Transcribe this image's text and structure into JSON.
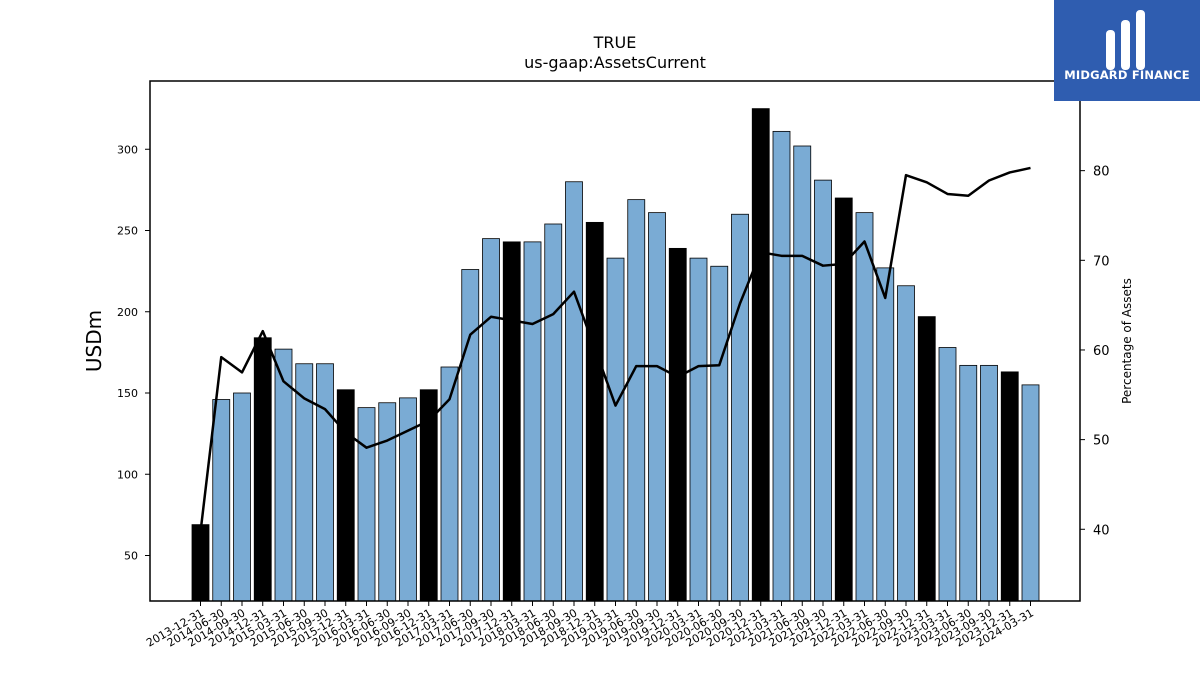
{
  "chart_data": {
    "type": "bar",
    "title": "TRUE",
    "subtitle": "us-gaap:AssetsCurrent",
    "ylabel": "USDm",
    "y2label": "Percentage of Assets",
    "ylim": [
      22,
      342
    ],
    "y2lim": [
      32,
      90
    ],
    "yticks": [
      50,
      100,
      150,
      200,
      250,
      300
    ],
    "y2ticks": [
      40,
      50,
      60,
      70,
      80
    ],
    "categories": [
      "2013-12-31",
      "2014-06-30",
      "2014-09-30",
      "2014-12-31",
      "2015-03-31",
      "2015-06-30",
      "2015-09-30",
      "2015-12-31",
      "2016-03-31",
      "2016-06-30",
      "2016-09-30",
      "2016-12-31",
      "2017-03-31",
      "2017-06-30",
      "2017-09-30",
      "2017-12-31",
      "2018-03-31",
      "2018-06-30",
      "2018-09-30",
      "2018-12-31",
      "2019-03-31",
      "2019-06-30",
      "2019-09-30",
      "2019-12-31",
      "2020-03-31",
      "2020-06-30",
      "2020-09-30",
      "2020-12-31",
      "2021-03-31",
      "2021-06-30",
      "2021-09-30",
      "2021-12-31",
      "2022-03-31",
      "2022-06-30",
      "2022-09-30",
      "2022-12-31",
      "2023-03-31",
      "2023-06-30",
      "2023-09-30",
      "2023-12-31",
      "2024-03-31"
    ],
    "series": [
      {
        "values": [
          69,
          146,
          150,
          184,
          177,
          168,
          168,
          152,
          141,
          144,
          147,
          152,
          166,
          226,
          245,
          243,
          243,
          254,
          280,
          255,
          233,
          269,
          261,
          239,
          233,
          228,
          260,
          325,
          311,
          302,
          281,
          270,
          261,
          227,
          216,
          197,
          178,
          167,
          167,
          163,
          155
        ],
        "highlighted": [
          true,
          false,
          false,
          true,
          false,
          false,
          false,
          true,
          false,
          false,
          false,
          true,
          false,
          false,
          false,
          true,
          false,
          false,
          false,
          true,
          false,
          false,
          false,
          true,
          false,
          false,
          false,
          true,
          false,
          false,
          false,
          true,
          false,
          false,
          false,
          true,
          false,
          false,
          false,
          true,
          false
        ]
      },
      {
        "axis": "right",
        "type": "line",
        "values": [
          39.7,
          59.2,
          57.5,
          62.1,
          56.5,
          54.6,
          53.4,
          50.8,
          49.1,
          49.9,
          51.0,
          52.1,
          54.5,
          61.7,
          63.7,
          63.3,
          62.9,
          64.0,
          66.5,
          60.2,
          53.8,
          58.2,
          58.2,
          57.0,
          58.2,
          58.3,
          65.2,
          70.9,
          70.5,
          70.5,
          69.4,
          69.6,
          72.1,
          65.8,
          79.5,
          78.7,
          77.4,
          77.2,
          78.9,
          79.8,
          80.3
        ]
      }
    ],
    "grid": false,
    "colors": {
      "bar": "#7aabd4",
      "bar_highlight": "#000000",
      "line": "#000000",
      "edge": "#000000"
    }
  },
  "logo": {
    "text": "MIDGARD FINANCE"
  }
}
